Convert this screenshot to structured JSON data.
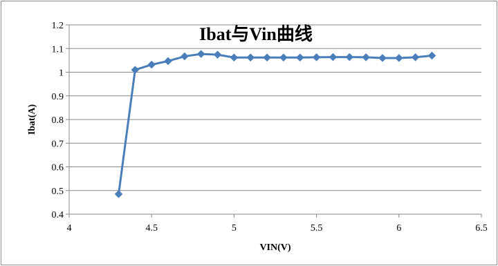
{
  "chart_data": {
    "type": "line",
    "title": "Ibat与Vin曲线",
    "xlabel": "VIN(V)",
    "ylabel": "Ibat(A)",
    "xlim": [
      4,
      6.5
    ],
    "ylim": [
      0.4,
      1.2
    ],
    "x_ticks": [
      4,
      4.5,
      5,
      5.5,
      6,
      6.5
    ],
    "x_tick_labels": [
      "4",
      "4.5",
      "5",
      "5.5",
      "6",
      "6.5"
    ],
    "y_ticks": [
      0.4,
      0.5,
      0.6,
      0.7,
      0.8,
      0.9,
      1.0,
      1.1,
      1.2
    ],
    "y_tick_labels": [
      "0.4",
      "0.5",
      "0.6",
      "0.7",
      "0.8",
      "0.9",
      "1",
      "1.1",
      "1.2"
    ],
    "grid": "horizontal",
    "legend": "none",
    "series": [
      {
        "color": "#4a7ebb",
        "marker": "diamond",
        "x": [
          4.3,
          4.4,
          4.5,
          4.6,
          4.7,
          4.8,
          4.9,
          5.0,
          5.1,
          5.2,
          5.3,
          5.4,
          5.5,
          5.6,
          5.7,
          5.8,
          5.9,
          6.0,
          6.1,
          6.2
        ],
        "y": [
          0.485,
          1.01,
          1.032,
          1.047,
          1.067,
          1.077,
          1.074,
          1.062,
          1.062,
          1.062,
          1.062,
          1.062,
          1.063,
          1.064,
          1.064,
          1.063,
          1.06,
          1.06,
          1.063,
          1.07
        ]
      }
    ]
  }
}
